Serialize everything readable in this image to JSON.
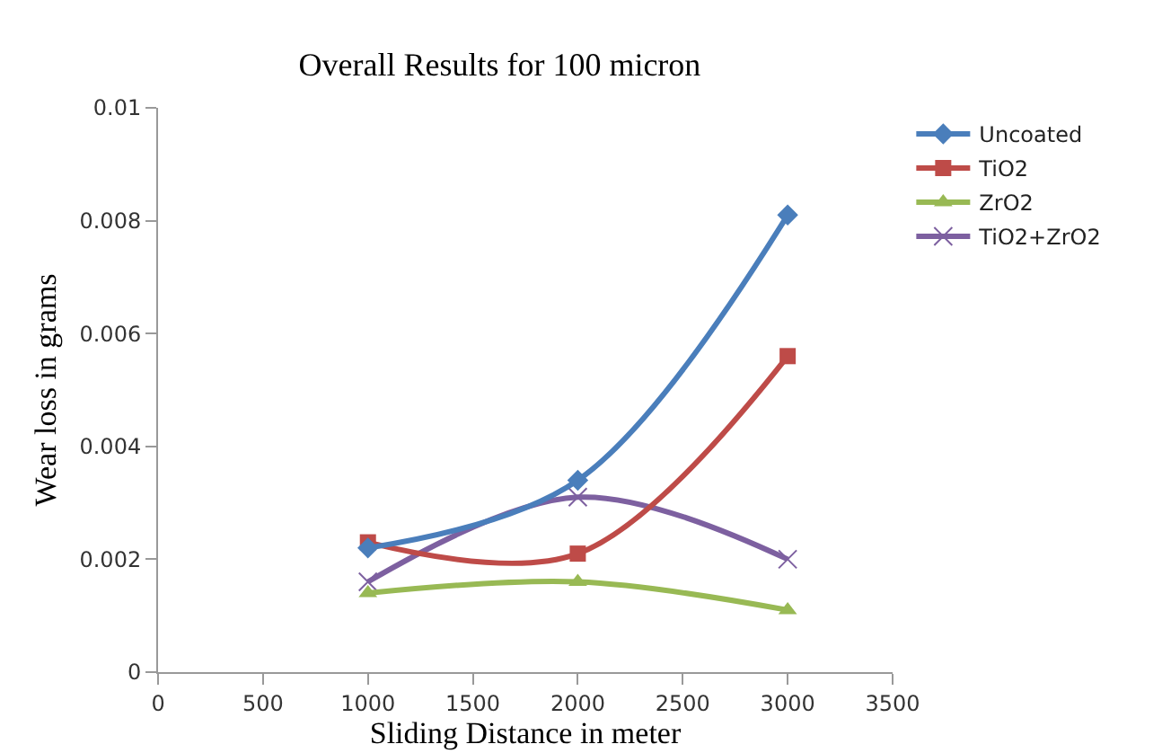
{
  "chart_data": {
    "type": "line",
    "title": "Overall Results for 100 micron",
    "xlabel": "Sliding Distance in meter",
    "ylabel": "Wear loss in grams",
    "x": [
      1000,
      2000,
      3000
    ],
    "series": [
      {
        "name": "Uncoated",
        "color": "#4a7ebb",
        "marker": "diamond",
        "values": [
          0.0022,
          0.0034,
          0.0081
        ]
      },
      {
        "name": "TiO2",
        "color": "#be4b48",
        "marker": "square",
        "values": [
          0.0023,
          0.0021,
          0.0056
        ]
      },
      {
        "name": "ZrO2",
        "color": "#98b954",
        "marker": "triangle",
        "values": [
          0.0014,
          0.0016,
          0.0011
        ]
      },
      {
        "name": "TiO2+ZrO2",
        "color": "#7d60a0",
        "marker": "cross",
        "values": [
          0.0016,
          0.0031,
          0.002
        ]
      }
    ],
    "xlim": [
      0,
      3500
    ],
    "xticks": [
      0,
      500,
      1000,
      1500,
      2000,
      2500,
      3000,
      3500
    ],
    "ylim": [
      0,
      0.01
    ],
    "yticks": [
      0,
      0.002,
      0.004,
      0.006,
      0.008,
      0.01
    ],
    "grid": false,
    "legend": "right",
    "line_style": "solid"
  }
}
